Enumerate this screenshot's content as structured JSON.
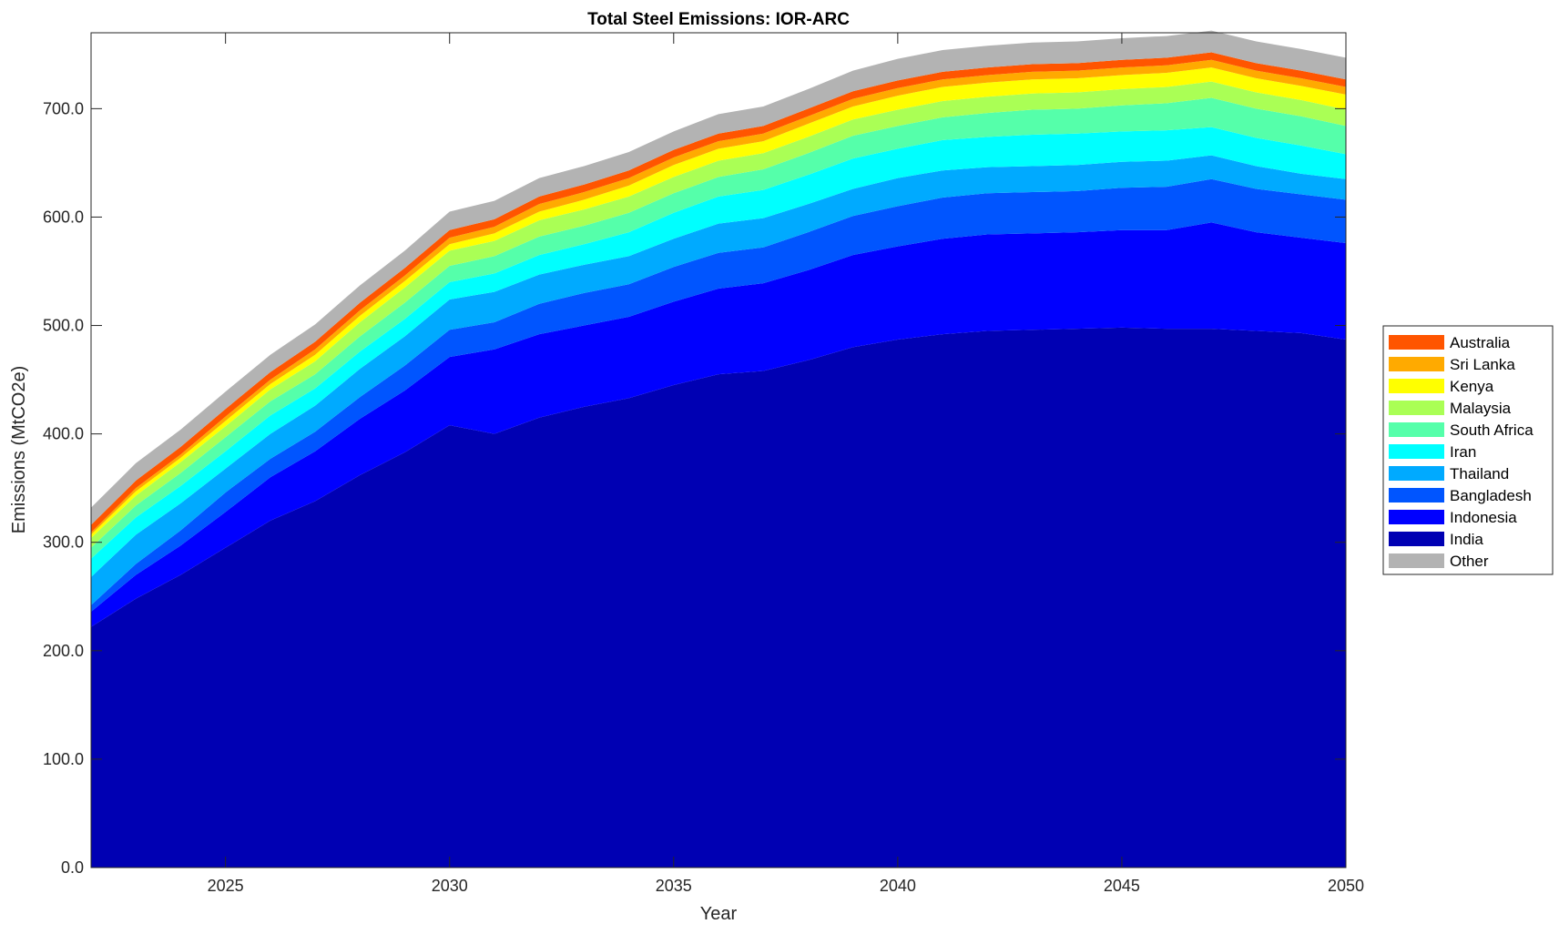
{
  "chart_data": {
    "type": "area",
    "stacked": true,
    "title": "Total Steel Emissions: IOR-ARC",
    "xlabel": "Year",
    "ylabel": "Emissions (MtCO2e)",
    "xlim": [
      2022,
      2050
    ],
    "ylim": [
      0,
      770
    ],
    "xticks": [
      2025,
      2030,
      2035,
      2040,
      2045,
      2050
    ],
    "xtick_labels": [
      "2025",
      "2030",
      "2035",
      "2040",
      "2045",
      "2050"
    ],
    "yticks": [
      0,
      100,
      200,
      300,
      400,
      500,
      600,
      700
    ],
    "ytick_labels": [
      "0.0",
      "100.0",
      "200.0",
      "300.0",
      "400.0",
      "500.0",
      "600.0",
      "700.0"
    ],
    "grid": false,
    "legend_position": "right",
    "x": [
      2022,
      2023,
      2024,
      2025,
      2026,
      2027,
      2028,
      2029,
      2030,
      2031,
      2032,
      2033,
      2034,
      2035,
      2036,
      2037,
      2038,
      2039,
      2040,
      2041,
      2042,
      2043,
      2044,
      2045,
      2046,
      2047,
      2048,
      2049,
      2050
    ],
    "series": [
      {
        "name": "India",
        "color": "#0000b3",
        "values": [
          222,
          248,
          270,
          295,
          320,
          338,
          362,
          383,
          408,
          400,
          415,
          425,
          433,
          445,
          455,
          458,
          468,
          480,
          487,
          492,
          495,
          496,
          497,
          498,
          497,
          497,
          495,
          493,
          487
        ]
      },
      {
        "name": "Indonesia",
        "color": "#0000ff",
        "values": [
          14,
          22,
          27,
          33,
          40,
          46,
          52,
          57,
          63,
          78,
          77,
          75,
          75,
          77,
          79,
          81,
          83,
          85,
          86,
          88,
          89,
          89,
          89,
          90,
          91,
          98,
          91,
          88,
          89
        ]
      },
      {
        "name": "Bangladesh",
        "color": "#0055ff",
        "values": [
          6,
          10,
          14,
          18,
          17,
          18,
          20,
          23,
          25,
          25,
          28,
          30,
          30,
          32,
          33,
          33,
          35,
          36,
          37,
          38,
          38,
          38,
          38,
          39,
          40,
          40,
          40,
          40,
          40
        ]
      },
      {
        "name": "Thailand",
        "color": "#00aaff",
        "values": [
          26,
          27,
          25,
          22,
          23,
          24,
          26,
          27,
          28,
          28,
          27,
          26,
          26,
          26,
          27,
          27,
          26,
          25,
          26,
          25,
          24,
          24,
          24,
          24,
          24,
          22,
          21,
          19,
          19
        ]
      },
      {
        "name": "Iran",
        "color": "#00ffff",
        "values": [
          17,
          16,
          16,
          16,
          17,
          16,
          16,
          16,
          16,
          17,
          18,
          19,
          22,
          24,
          25,
          26,
          27,
          28,
          27,
          28,
          28,
          29,
          29,
          28,
          28,
          26,
          26,
          26,
          23
        ]
      },
      {
        "name": "South Africa",
        "color": "#55ffaa",
        "values": [
          10,
          11,
          12,
          13,
          13,
          13,
          14,
          15,
          15,
          16,
          17,
          17,
          18,
          18,
          18,
          19,
          20,
          21,
          21,
          21,
          22,
          23,
          23,
          24,
          25,
          27,
          27,
          27,
          26
        ]
      },
      {
        "name": "Malaysia",
        "color": "#aaff55",
        "values": [
          9,
          9,
          10,
          10,
          11,
          12,
          13,
          14,
          14,
          14,
          15,
          15,
          15,
          15,
          15,
          15,
          15,
          15,
          15,
          15,
          15,
          15,
          15,
          15,
          15,
          15,
          15,
          15,
          15
        ]
      },
      {
        "name": "Kenya",
        "color": "#ffff00",
        "values": [
          3,
          4,
          4,
          5,
          5,
          6,
          6,
          6,
          6,
          7,
          8,
          9,
          10,
          11,
          11,
          11,
          12,
          12,
          13,
          13,
          13,
          13,
          13,
          13,
          13,
          13,
          13,
          13,
          14
        ]
      },
      {
        "name": "Sri Lanka",
        "color": "#ffaa00",
        "values": [
          2,
          3,
          3,
          4,
          4,
          5,
          5,
          5,
          6,
          6,
          7,
          7,
          7,
          7,
          7,
          7,
          7,
          7,
          7,
          7,
          7,
          7,
          7,
          7,
          7,
          7,
          7,
          7,
          7
        ]
      },
      {
        "name": "Australia",
        "color": "#ff5500",
        "values": [
          7,
          7,
          7,
          7,
          7,
          7,
          7,
          7,
          7,
          7,
          7,
          7,
          7,
          7,
          7,
          7,
          7,
          7,
          7,
          7,
          7,
          7,
          7,
          7,
          7,
          7,
          7,
          7,
          7
        ]
      },
      {
        "name": "Other",
        "color": "#b3b3b3",
        "values": [
          16,
          16,
          16,
          16,
          16,
          16,
          16,
          16,
          17,
          17,
          17,
          17,
          17,
          17,
          18,
          18,
          18,
          19,
          20,
          20,
          20,
          20,
          20,
          20,
          20,
          20,
          20,
          20,
          20
        ]
      }
    ],
    "legend_order": [
      "Australia",
      "Sri Lanka",
      "Kenya",
      "Malaysia",
      "South Africa",
      "Iran",
      "Thailand",
      "Bangladesh",
      "Indonesia",
      "India",
      "Other"
    ]
  }
}
